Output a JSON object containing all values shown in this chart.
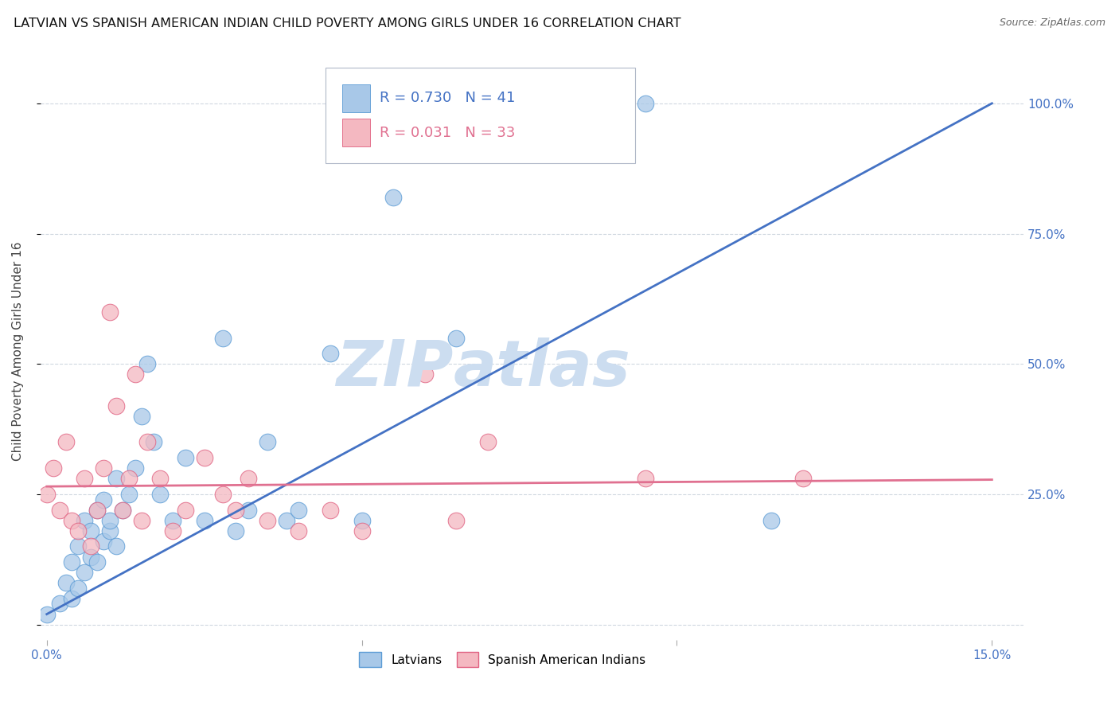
{
  "title": "LATVIAN VS SPANISH AMERICAN INDIAN CHILD POVERTY AMONG GIRLS UNDER 16 CORRELATION CHART",
  "source": "Source: ZipAtlas.com",
  "ylabel": "Child Poverty Among Girls Under 16",
  "xlim": [
    -0.001,
    0.155
  ],
  "ylim": [
    -0.03,
    1.08
  ],
  "yticks": [
    0.0,
    0.25,
    0.5,
    0.75,
    1.0
  ],
  "xticks": [
    0.0,
    0.05,
    0.1,
    0.15
  ],
  "xtick_labels": [
    "0.0%",
    "",
    "",
    "15.0%"
  ],
  "yright_labels": [
    "25.0%",
    "50.0%",
    "75.0%",
    "100.0%"
  ],
  "yright_ticks": [
    0.25,
    0.5,
    0.75,
    1.0
  ],
  "latvian_R": 0.73,
  "latvian_N": 41,
  "spanish_R": 0.031,
  "spanish_N": 33,
  "blue_scatter": "#a8c8e8",
  "blue_edge": "#5b9bd5",
  "pink_scatter": "#f4b8c1",
  "pink_edge": "#e06080",
  "line_blue": "#4472c4",
  "line_pink": "#e07090",
  "watermark_color": "#ccddf0",
  "grid_color": "#d0d8e0",
  "latvian_x": [
    0.0,
    0.002,
    0.003,
    0.004,
    0.004,
    0.005,
    0.005,
    0.006,
    0.006,
    0.007,
    0.007,
    0.008,
    0.008,
    0.009,
    0.009,
    0.01,
    0.01,
    0.011,
    0.011,
    0.012,
    0.013,
    0.014,
    0.015,
    0.016,
    0.017,
    0.018,
    0.02,
    0.022,
    0.025,
    0.028,
    0.03,
    0.032,
    0.035,
    0.038,
    0.04,
    0.045,
    0.05,
    0.055,
    0.065,
    0.095,
    0.115
  ],
  "latvian_y": [
    0.02,
    0.04,
    0.08,
    0.05,
    0.12,
    0.07,
    0.15,
    0.1,
    0.2,
    0.13,
    0.18,
    0.12,
    0.22,
    0.16,
    0.24,
    0.18,
    0.2,
    0.15,
    0.28,
    0.22,
    0.25,
    0.3,
    0.4,
    0.5,
    0.35,
    0.25,
    0.2,
    0.32,
    0.2,
    0.55,
    0.18,
    0.22,
    0.35,
    0.2,
    0.22,
    0.52,
    0.2,
    0.82,
    0.55,
    1.0,
    0.2
  ],
  "spanish_x": [
    0.0,
    0.001,
    0.002,
    0.003,
    0.004,
    0.005,
    0.006,
    0.007,
    0.008,
    0.009,
    0.01,
    0.011,
    0.012,
    0.013,
    0.014,
    0.015,
    0.016,
    0.018,
    0.02,
    0.022,
    0.025,
    0.028,
    0.03,
    0.032,
    0.035,
    0.04,
    0.045,
    0.05,
    0.06,
    0.065,
    0.07,
    0.095,
    0.12
  ],
  "spanish_y": [
    0.25,
    0.3,
    0.22,
    0.35,
    0.2,
    0.18,
    0.28,
    0.15,
    0.22,
    0.3,
    0.6,
    0.42,
    0.22,
    0.28,
    0.48,
    0.2,
    0.35,
    0.28,
    0.18,
    0.22,
    0.32,
    0.25,
    0.22,
    0.28,
    0.2,
    0.18,
    0.22,
    0.18,
    0.48,
    0.2,
    0.35,
    0.28,
    0.28
  ],
  "title_fontsize": 11.5,
  "ylabel_fontsize": 11,
  "tick_fontsize": 11,
  "legend_fontsize": 13
}
